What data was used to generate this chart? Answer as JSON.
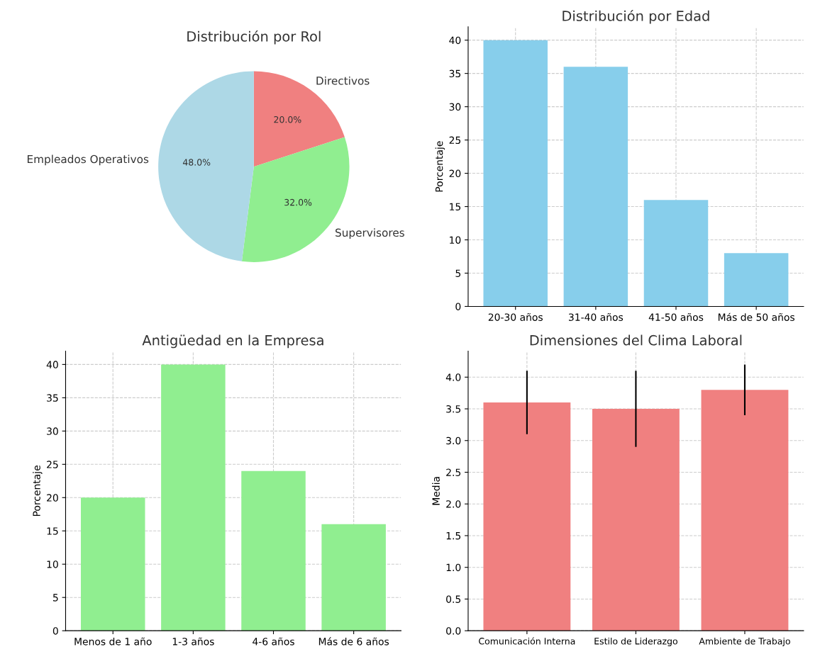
{
  "chart_data": [
    {
      "type": "pie",
      "title": "Distribución por Rol",
      "categories": [
        "Directivos",
        "Supervisores",
        "Empleados Operativos"
      ],
      "values": [
        20,
        32,
        48
      ],
      "colors": [
        "#f08080",
        "#90ee90",
        "#add8e6"
      ],
      "value_labels": [
        "20.0%",
        "32.0%",
        "48.0%"
      ]
    },
    {
      "type": "bar",
      "title": "Distribución por Edad",
      "ylabel": "Porcentaje",
      "categories": [
        "20-30 años",
        "31-40 años",
        "41-50 años",
        "Más de 50 años"
      ],
      "values": [
        40,
        36,
        16,
        8
      ],
      "color": "#87ceeb",
      "ylim": [
        0,
        42
      ],
      "yticks": [
        0,
        5,
        10,
        15,
        20,
        25,
        30,
        35,
        40
      ],
      "grid": true
    },
    {
      "type": "bar",
      "title": "Antigüedad en la Empresa",
      "ylabel": "Porcentaje",
      "categories": [
        "Menos de 1 año",
        "1-3 años",
        "4-6 años",
        "Más de 6 años"
      ],
      "values": [
        20,
        40,
        24,
        16
      ],
      "color": "#90ee90",
      "ylim": [
        0,
        42
      ],
      "yticks": [
        0,
        5,
        10,
        15,
        20,
        25,
        30,
        35,
        40
      ],
      "grid": true
    },
    {
      "type": "bar",
      "title": "Dimensiones del Clima Laboral",
      "ylabel": "Media",
      "categories": [
        "Comunicación Interna",
        "Estilo de Liderazgo",
        "Ambiente de Trabajo"
      ],
      "values": [
        3.6,
        3.5,
        3.8
      ],
      "errors": [
        0.5,
        0.6,
        0.4
      ],
      "color": "#f08080",
      "ylim": [
        0,
        4.41
      ],
      "yticks": [
        {
          "value": 0,
          "label": "0.0"
        },
        {
          "value": 0.5,
          "label": "0.5"
        },
        {
          "value": 1,
          "label": "1.0"
        },
        {
          "value": 1.5,
          "label": "1.5"
        },
        {
          "value": 2,
          "label": "2.0"
        },
        {
          "value": 2.5,
          "label": "2.5"
        },
        {
          "value": 3,
          "label": "3.0"
        },
        {
          "value": 3.5,
          "label": "3.5"
        },
        {
          "value": 4,
          "label": "4.0"
        }
      ],
      "grid": true
    }
  ]
}
